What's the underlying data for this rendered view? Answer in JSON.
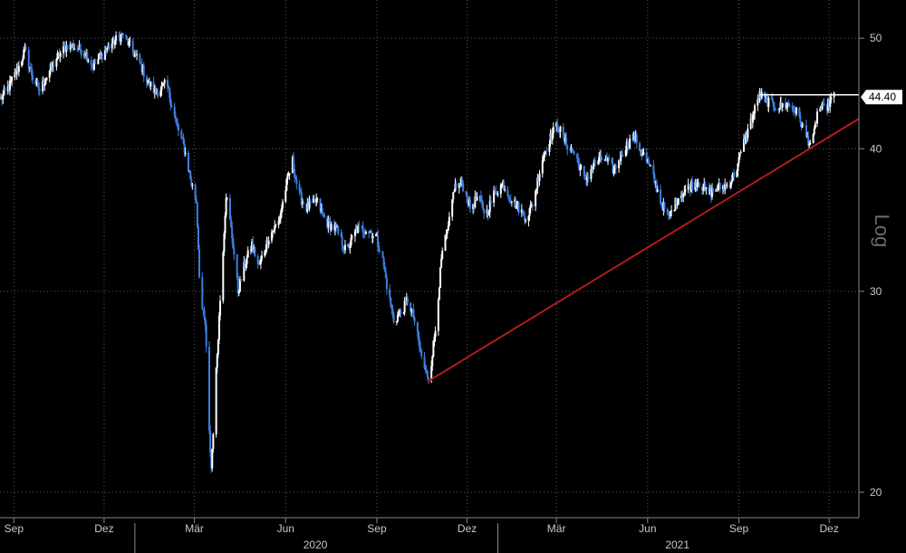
{
  "chart_data": {
    "type": "candlestick",
    "title": "",
    "xlabel": "",
    "ylabel": "",
    "y_scale": "Log",
    "scale_label": "Log",
    "yticks": [
      20,
      30,
      40,
      50
    ],
    "ylim": [
      19,
      54
    ],
    "xlim": [
      "2019-08-18",
      "2021-12-31"
    ],
    "x_ticks": [
      {
        "label": "Sep",
        "date": "2019-09-01"
      },
      {
        "label": "Dez",
        "date": "2019-12-01"
      },
      {
        "label": "Mär",
        "date": "2020-03-01"
      },
      {
        "label": "Jun",
        "date": "2020-06-01"
      },
      {
        "label": "Sep",
        "date": "2020-09-01"
      },
      {
        "label": "Dez",
        "date": "2020-12-01"
      },
      {
        "label": "Mär",
        "date": "2021-03-01"
      },
      {
        "label": "Jun",
        "date": "2021-06-01"
      },
      {
        "label": "Sep",
        "date": "2021-09-01"
      },
      {
        "label": "Dez",
        "date": "2021-12-01"
      }
    ],
    "years": [
      {
        "label": "2020",
        "date": "2020-07-01"
      },
      {
        "label": "2021",
        "date": "2021-07-01"
      }
    ],
    "year_separators": [
      "2020-01-01",
      "2021-01-01"
    ],
    "last_price": 44.4,
    "last_price_label": "44.40",
    "colors": {
      "up": "#ffffff",
      "down": "#3d7fe0",
      "trendline": "#b01c1c",
      "grid": "#5a5a5a",
      "axis": "#888888",
      "resistance": "#ffffff"
    },
    "price_path": [
      [
        "2019-08-19",
        44.2
      ],
      [
        "2019-08-28",
        45.5
      ],
      [
        "2019-09-06",
        47.2
      ],
      [
        "2019-09-12",
        48.8
      ],
      [
        "2019-09-20",
        46.2
      ],
      [
        "2019-09-27",
        45.0
      ],
      [
        "2019-10-04",
        46.3
      ],
      [
        "2019-10-14",
        48.0
      ],
      [
        "2019-10-25",
        49.3
      ],
      [
        "2019-11-04",
        49.0
      ],
      [
        "2019-11-12",
        48.6
      ],
      [
        "2019-11-20",
        47.2
      ],
      [
        "2019-11-28",
        48.3
      ],
      [
        "2019-12-08",
        49.4
      ],
      [
        "2019-12-20",
        50.4
      ],
      [
        "2019-12-28",
        49.0
      ],
      [
        "2020-01-06",
        47.5
      ],
      [
        "2020-01-14",
        45.8
      ],
      [
        "2020-01-22",
        44.8
      ],
      [
        "2020-02-02",
        45.6
      ],
      [
        "2020-02-12",
        42.0
      ],
      [
        "2020-02-20",
        40.0
      ],
      [
        "2020-02-27",
        37.3
      ],
      [
        "2020-03-03",
        36.0
      ],
      [
        "2020-03-07",
        29.5
      ],
      [
        "2020-03-12",
        28.0
      ],
      [
        "2020-03-16",
        22.5
      ],
      [
        "2020-03-18",
        21.0
      ],
      [
        "2020-03-21",
        23.5
      ],
      [
        "2020-03-25",
        27.5
      ],
      [
        "2020-03-29",
        31.5
      ],
      [
        "2020-04-02",
        36.5
      ],
      [
        "2020-04-08",
        33.5
      ],
      [
        "2020-04-14",
        30.0
      ],
      [
        "2020-04-20",
        31.5
      ],
      [
        "2020-04-28",
        33.0
      ],
      [
        "2020-05-05",
        31.5
      ],
      [
        "2020-05-15",
        33.5
      ],
      [
        "2020-05-25",
        34.5
      ],
      [
        "2020-06-03",
        37.6
      ],
      [
        "2020-06-08",
        39.0
      ],
      [
        "2020-06-14",
        36.5
      ],
      [
        "2020-06-22",
        35.5
      ],
      [
        "2020-07-02",
        36.0
      ],
      [
        "2020-07-12",
        34.5
      ],
      [
        "2020-07-22",
        34.0
      ],
      [
        "2020-08-01",
        32.5
      ],
      [
        "2020-08-12",
        34.0
      ],
      [
        "2020-08-22",
        34.0
      ],
      [
        "2020-08-31",
        33.5
      ],
      [
        "2020-09-06",
        32.3
      ],
      [
        "2020-09-12",
        30.0
      ],
      [
        "2020-09-18",
        28.3
      ],
      [
        "2020-09-26",
        28.8
      ],
      [
        "2020-10-02",
        29.5
      ],
      [
        "2020-10-08",
        28.5
      ],
      [
        "2020-10-15",
        26.5
      ],
      [
        "2020-10-20",
        25.5
      ],
      [
        "2020-10-24",
        25.2
      ],
      [
        "2020-10-30",
        27.8
      ],
      [
        "2020-11-06",
        32.5
      ],
      [
        "2020-11-12",
        34.0
      ],
      [
        "2020-11-18",
        37.0
      ],
      [
        "2020-11-26",
        37.3
      ],
      [
        "2020-12-04",
        35.5
      ],
      [
        "2020-12-12",
        36.3
      ],
      [
        "2020-12-20",
        35.0
      ],
      [
        "2020-12-28",
        36.5
      ],
      [
        "2021-01-06",
        37.3
      ],
      [
        "2021-01-14",
        36.2
      ],
      [
        "2021-01-22",
        35.5
      ],
      [
        "2021-01-30",
        34.8
      ],
      [
        "2021-02-06",
        36.0
      ],
      [
        "2021-02-14",
        39.0
      ],
      [
        "2021-02-22",
        40.8
      ],
      [
        "2021-03-02",
        42.0
      ],
      [
        "2021-03-10",
        40.5
      ],
      [
        "2021-03-20",
        39.5
      ],
      [
        "2021-03-30",
        37.5
      ],
      [
        "2021-04-08",
        38.8
      ],
      [
        "2021-04-18",
        39.3
      ],
      [
        "2021-04-28",
        38.3
      ],
      [
        "2021-05-08",
        40.0
      ],
      [
        "2021-05-18",
        41.0
      ],
      [
        "2021-05-28",
        39.5
      ],
      [
        "2021-06-06",
        38.0
      ],
      [
        "2021-06-14",
        36.0
      ],
      [
        "2021-06-22",
        34.8
      ],
      [
        "2021-07-02",
        36.3
      ],
      [
        "2021-07-12",
        37.0
      ],
      [
        "2021-07-22",
        37.5
      ],
      [
        "2021-08-01",
        36.5
      ],
      [
        "2021-08-12",
        37.0
      ],
      [
        "2021-08-22",
        37.2
      ],
      [
        "2021-08-30",
        38.5
      ],
      [
        "2021-09-06",
        40.5
      ],
      [
        "2021-09-14",
        42.5
      ],
      [
        "2021-09-22",
        44.6
      ],
      [
        "2021-09-30",
        44.0
      ],
      [
        "2021-10-10",
        43.5
      ],
      [
        "2021-10-20",
        43.8
      ],
      [
        "2021-10-30",
        43.0
      ],
      [
        "2021-11-08",
        41.0
      ],
      [
        "2021-11-14",
        40.2
      ],
      [
        "2021-11-20",
        43.5
      ],
      [
        "2021-11-26",
        43.3
      ],
      [
        "2021-12-02",
        44.0
      ],
      [
        "2021-12-06",
        44.4
      ]
    ],
    "trendline": {
      "from": [
        "2020-10-22",
        25.0
      ],
      "to": [
        "2021-12-31",
        42.5
      ]
    },
    "resistance_line": {
      "from": [
        "2021-09-22",
        44.6
      ],
      "to": [
        "2021-12-31",
        44.6
      ]
    }
  }
}
